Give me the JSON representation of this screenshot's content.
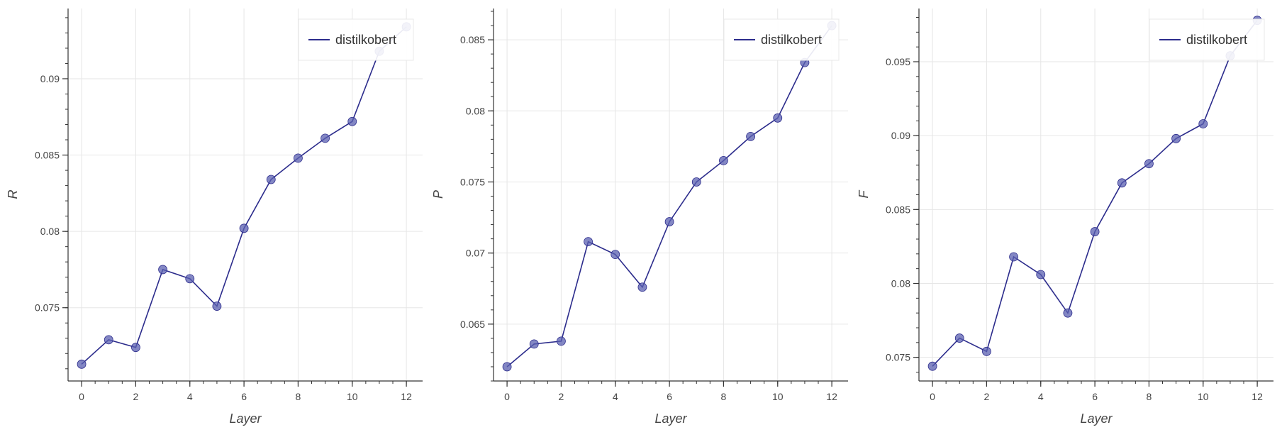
{
  "chart_data": [
    {
      "type": "line",
      "ylabel": "R",
      "xlabel": "Layer",
      "x": [
        0,
        1,
        2,
        3,
        4,
        5,
        6,
        7,
        8,
        9,
        10,
        11,
        12
      ],
      "series": [
        {
          "name": "distilkobert",
          "values": [
            0.0713,
            0.0729,
            0.0724,
            0.0775,
            0.0769,
            0.0751,
            0.0802,
            0.0834,
            0.0848,
            0.0861,
            0.0872,
            0.0918,
            0.0934
          ]
        }
      ],
      "xlim": [
        -0.5,
        12.6
      ],
      "ylim": [
        0.0702,
        0.0946
      ],
      "xticks": [
        "0",
        "2",
        "4",
        "6",
        "8",
        "10",
        "12"
      ],
      "yticks": [
        "0.075",
        "0.08",
        "0.085",
        "0.09"
      ],
      "grid": true,
      "legend_position": "top-right",
      "color": "#2c2c8c",
      "marker_color": "#5a5fb0"
    },
    {
      "type": "line",
      "ylabel": "P",
      "xlabel": "Layer",
      "x": [
        0,
        1,
        2,
        3,
        4,
        5,
        6,
        7,
        8,
        9,
        10,
        11,
        12
      ],
      "series": [
        {
          "name": "distilkobert",
          "values": [
            0.062,
            0.0636,
            0.0638,
            0.0708,
            0.0699,
            0.0676,
            0.0722,
            0.075,
            0.0765,
            0.0782,
            0.0795,
            0.0834,
            0.086
          ]
        }
      ],
      "xlim": [
        -0.5,
        12.6
      ],
      "ylim": [
        0.061,
        0.0872
      ],
      "xticks": [
        "0",
        "2",
        "4",
        "6",
        "8",
        "10",
        "12"
      ],
      "yticks": [
        "0.065",
        "0.07",
        "0.075",
        "0.08",
        "0.085"
      ],
      "grid": true,
      "legend_position": "top-right",
      "color": "#2c2c8c",
      "marker_color": "#5a5fb0"
    },
    {
      "type": "line",
      "ylabel": "F",
      "xlabel": "Layer",
      "x": [
        0,
        1,
        2,
        3,
        4,
        5,
        6,
        7,
        8,
        9,
        10,
        11,
        12
      ],
      "series": [
        {
          "name": "distilkobert",
          "values": [
            0.0744,
            0.0763,
            0.0754,
            0.0818,
            0.0806,
            0.078,
            0.0835,
            0.0868,
            0.0881,
            0.0898,
            0.0908,
            0.0954,
            0.0978
          ]
        }
      ],
      "xlim": [
        -0.5,
        12.6
      ],
      "ylim": [
        0.0734,
        0.0986
      ],
      "xticks": [
        "0",
        "2",
        "4",
        "6",
        "8",
        "10",
        "12"
      ],
      "yticks": [
        "0.075",
        "0.08",
        "0.085",
        "0.09",
        "0.095"
      ],
      "grid": true,
      "legend_position": "top-right",
      "color": "#2c2c8c",
      "marker_color": "#5a5fb0"
    }
  ]
}
